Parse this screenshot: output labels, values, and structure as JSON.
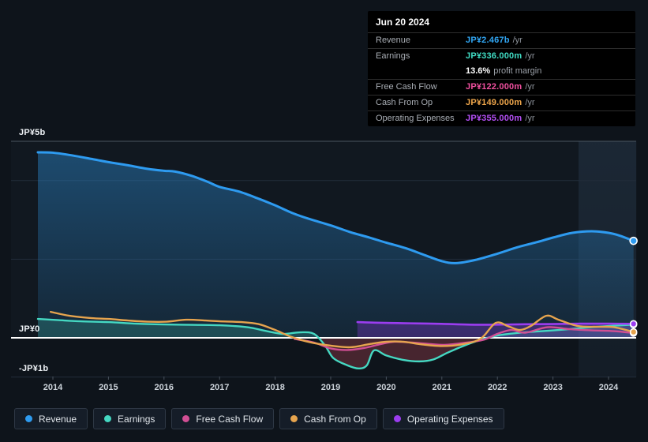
{
  "tooltip": {
    "date": "Jun 20 2024",
    "rows": [
      {
        "label": "Revenue",
        "value": "JP¥2.467b",
        "suffix": "/yr",
        "color": "#31a7f5"
      },
      {
        "label": "Earnings",
        "value": "JP¥336.000m",
        "suffix": "/yr",
        "color": "#40dcc4",
        "sub_bold": "13.6%",
        "sub_text": "profit margin"
      },
      {
        "label": "Free Cash Flow",
        "value": "JP¥122.000m",
        "suffix": "/yr",
        "color": "#f0509f"
      },
      {
        "label": "Cash From Op",
        "value": "JP¥149.000m",
        "suffix": "/yr",
        "color": "#efa64b"
      },
      {
        "label": "Operating Expenses",
        "value": "JP¥355.000m",
        "suffix": "/yr",
        "color": "#b44ff5"
      }
    ]
  },
  "legend": {
    "items": [
      {
        "id": "revenue",
        "label": "Revenue",
        "color": "#2e9bf0"
      },
      {
        "id": "earnings",
        "label": "Earnings",
        "color": "#45d8c2"
      },
      {
        "id": "fcf",
        "label": "Free Cash Flow",
        "color": "#d14f94"
      },
      {
        "id": "cfo",
        "label": "Cash From Op",
        "color": "#e6a44e"
      },
      {
        "id": "opex",
        "label": "Operating Expenses",
        "color": "#9b3df0"
      }
    ]
  },
  "chart_data": {
    "type": "area",
    "title": "",
    "currency_unit": "JP¥ billions per year",
    "x_axis": {
      "years": [
        "2014",
        "2015",
        "2016",
        "2017",
        "2018",
        "2019",
        "2020",
        "2021",
        "2022",
        "2023",
        "2024"
      ]
    },
    "y_axis": {
      "labels": [
        {
          "text": "JP¥5b",
          "value": 5
        },
        {
          "text": "JP¥0",
          "value": 0
        },
        {
          "text": "-JP¥1b",
          "value": -1
        }
      ],
      "gridline_values": [
        5,
        4,
        2,
        -1
      ],
      "zero_line_value": 0,
      "range_b": [
        -1.45,
        5.0
      ]
    },
    "highlight_band": {
      "from_year": 2023.46,
      "to_year": 2024.5
    },
    "series": [
      {
        "id": "revenue",
        "name": "Revenue",
        "color": "#2e9bf0",
        "fill": "blue-gradient",
        "width": 3,
        "end_value_label": "JP¥2.467b/yr",
        "points": [
          [
            2013.73,
            4.72
          ],
          [
            2014.0,
            4.71
          ],
          [
            2014.35,
            4.64
          ],
          [
            2014.7,
            4.55
          ],
          [
            2015.0,
            4.47
          ],
          [
            2015.35,
            4.39
          ],
          [
            2015.7,
            4.3
          ],
          [
            2016.0,
            4.25
          ],
          [
            2016.2,
            4.23
          ],
          [
            2016.5,
            4.12
          ],
          [
            2016.8,
            3.96
          ],
          [
            2017.0,
            3.84
          ],
          [
            2017.35,
            3.72
          ],
          [
            2017.7,
            3.54
          ],
          [
            2018.0,
            3.37
          ],
          [
            2018.3,
            3.18
          ],
          [
            2018.6,
            3.03
          ],
          [
            2019.0,
            2.86
          ],
          [
            2019.35,
            2.69
          ],
          [
            2019.7,
            2.55
          ],
          [
            2020.0,
            2.42
          ],
          [
            2020.35,
            2.28
          ],
          [
            2020.7,
            2.1
          ],
          [
            2021.0,
            1.95
          ],
          [
            2021.25,
            1.9
          ],
          [
            2021.6,
            1.98
          ],
          [
            2022.0,
            2.14
          ],
          [
            2022.35,
            2.3
          ],
          [
            2022.7,
            2.43
          ],
          [
            2023.0,
            2.55
          ],
          [
            2023.35,
            2.67
          ],
          [
            2023.7,
            2.71
          ],
          [
            2024.0,
            2.67
          ],
          [
            2024.2,
            2.6
          ],
          [
            2024.45,
            2.467
          ]
        ]
      },
      {
        "id": "earnings",
        "name": "Earnings",
        "color": "#45d8c2",
        "fill": "pos-neg",
        "width": 2.4,
        "end_value_label": "JP¥336.000m/yr",
        "points": [
          [
            2013.73,
            0.48
          ],
          [
            2014.1,
            0.45
          ],
          [
            2014.5,
            0.42
          ],
          [
            2015.0,
            0.4
          ],
          [
            2015.5,
            0.36
          ],
          [
            2016.0,
            0.34
          ],
          [
            2016.5,
            0.33
          ],
          [
            2017.0,
            0.32
          ],
          [
            2017.5,
            0.27
          ],
          [
            2017.85,
            0.17
          ],
          [
            2018.15,
            0.1
          ],
          [
            2018.45,
            0.14
          ],
          [
            2018.7,
            0.1
          ],
          [
            2018.9,
            -0.2
          ],
          [
            2019.05,
            -0.52
          ],
          [
            2019.3,
            -0.7
          ],
          [
            2019.5,
            -0.78
          ],
          [
            2019.65,
            -0.7
          ],
          [
            2019.78,
            -0.32
          ],
          [
            2020.0,
            -0.45
          ],
          [
            2020.3,
            -0.56
          ],
          [
            2020.6,
            -0.6
          ],
          [
            2020.85,
            -0.55
          ],
          [
            2021.1,
            -0.38
          ],
          [
            2021.4,
            -0.2
          ],
          [
            2021.7,
            -0.05
          ],
          [
            2022.0,
            0.06
          ],
          [
            2022.4,
            0.13
          ],
          [
            2022.8,
            0.17
          ],
          [
            2023.2,
            0.21
          ],
          [
            2023.6,
            0.26
          ],
          [
            2024.0,
            0.3
          ],
          [
            2024.45,
            0.336
          ]
        ]
      },
      {
        "id": "fcf",
        "name": "Free Cash Flow",
        "color": "#d14f94",
        "fill": "none",
        "width": 2.4,
        "end_value_label": "JP¥122.000m/yr",
        "points": [
          [
            2018.35,
            -0.03
          ],
          [
            2018.7,
            -0.12
          ],
          [
            2019.0,
            -0.27
          ],
          [
            2019.3,
            -0.31
          ],
          [
            2019.6,
            -0.26
          ],
          [
            2019.9,
            -0.16
          ],
          [
            2020.15,
            -0.1
          ],
          [
            2020.45,
            -0.12
          ],
          [
            2020.8,
            -0.16
          ],
          [
            2021.05,
            -0.18
          ],
          [
            2021.4,
            -0.13
          ],
          [
            2021.75,
            -0.05
          ],
          [
            2022.0,
            0.1
          ],
          [
            2022.25,
            0.2
          ],
          [
            2022.5,
            0.13
          ],
          [
            2022.9,
            0.27
          ],
          [
            2023.3,
            0.22
          ],
          [
            2023.7,
            0.19
          ],
          [
            2024.1,
            0.17
          ],
          [
            2024.45,
            0.122
          ]
        ]
      },
      {
        "id": "opex",
        "name": "Operating Expenses",
        "color": "#9b3df0",
        "fill": "purple",
        "width": 2.6,
        "end_value_label": "JP¥355.000m/yr",
        "points": [
          [
            2019.48,
            0.4
          ],
          [
            2019.8,
            0.385
          ],
          [
            2020.2,
            0.375
          ],
          [
            2020.6,
            0.365
          ],
          [
            2021.0,
            0.355
          ],
          [
            2021.5,
            0.335
          ],
          [
            2022.0,
            0.335
          ],
          [
            2022.5,
            0.345
          ],
          [
            2023.0,
            0.35
          ],
          [
            2023.5,
            0.36
          ],
          [
            2024.0,
            0.36
          ],
          [
            2024.45,
            0.355
          ]
        ]
      },
      {
        "id": "cfo",
        "name": "Cash From Op",
        "color": "#e6a44e",
        "fill": "none",
        "width": 2.4,
        "end_value_label": "JP¥149.000m/yr",
        "points": [
          [
            2013.96,
            0.66
          ],
          [
            2014.3,
            0.56
          ],
          [
            2014.7,
            0.5
          ],
          [
            2015.0,
            0.48
          ],
          [
            2015.35,
            0.44
          ],
          [
            2015.7,
            0.41
          ],
          [
            2016.05,
            0.41
          ],
          [
            2016.4,
            0.46
          ],
          [
            2016.75,
            0.44
          ],
          [
            2017.0,
            0.42
          ],
          [
            2017.4,
            0.4
          ],
          [
            2017.7,
            0.35
          ],
          [
            2018.0,
            0.2
          ],
          [
            2018.3,
            0.02
          ],
          [
            2018.65,
            -0.12
          ],
          [
            2019.0,
            -0.2
          ],
          [
            2019.35,
            -0.24
          ],
          [
            2019.7,
            -0.16
          ],
          [
            2020.0,
            -0.1
          ],
          [
            2020.3,
            -0.1
          ],
          [
            2020.65,
            -0.17
          ],
          [
            2021.0,
            -0.21
          ],
          [
            2021.35,
            -0.17
          ],
          [
            2021.7,
            -0.02
          ],
          [
            2021.97,
            0.38
          ],
          [
            2022.2,
            0.29
          ],
          [
            2022.4,
            0.2
          ],
          [
            2022.6,
            0.3
          ],
          [
            2022.88,
            0.56
          ],
          [
            2023.1,
            0.46
          ],
          [
            2023.45,
            0.3
          ],
          [
            2023.8,
            0.28
          ],
          [
            2024.1,
            0.27
          ],
          [
            2024.45,
            0.149
          ]
        ]
      }
    ]
  }
}
